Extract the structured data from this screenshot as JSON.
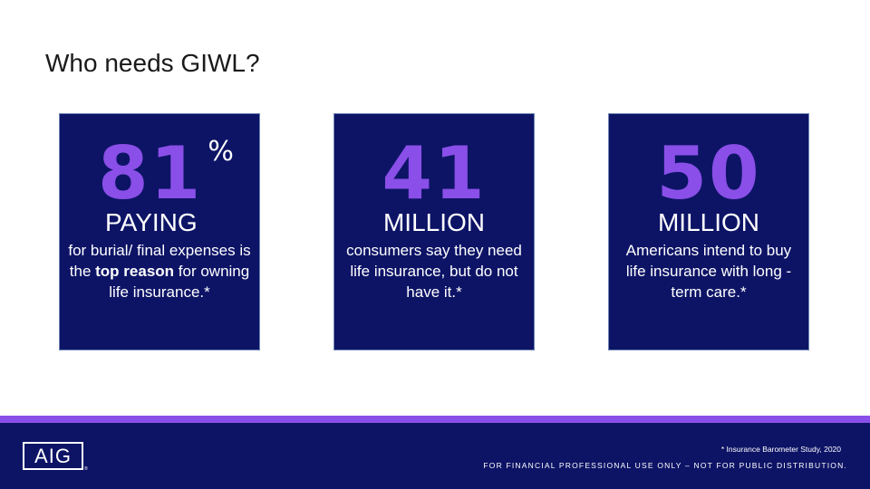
{
  "slide": {
    "title": "Who needs GIWL?"
  },
  "stats": [
    {
      "number": "81",
      "number_suffix": "%",
      "headline": "PAYING",
      "desc_part1": "for burial/ final expenses is the ",
      "desc_bold": "top reason",
      "desc_part2": " for owning life insurance.*"
    },
    {
      "number": "41",
      "headline": "MILLION",
      "desc": "consumers say they need life insurance, but do not have it.*"
    },
    {
      "number": "50",
      "headline": "MILLION",
      "desc": "Americans intend to buy life insurance with long -term care.*"
    }
  ],
  "footer": {
    "logo_text": "AIG",
    "logo_reg": "®",
    "footnote": "* Insurance Barometer Study, 2020",
    "disclaimer": "FOR FINANCIAL PROFESSIONAL USE ONLY – NOT FOR PUBLIC DISTRIBUTION."
  },
  "colors": {
    "card_background": "#0d1466",
    "accent_purple": "#8a4fe8",
    "card_border": "#6f86b4",
    "footer_background": "#0d1466"
  }
}
